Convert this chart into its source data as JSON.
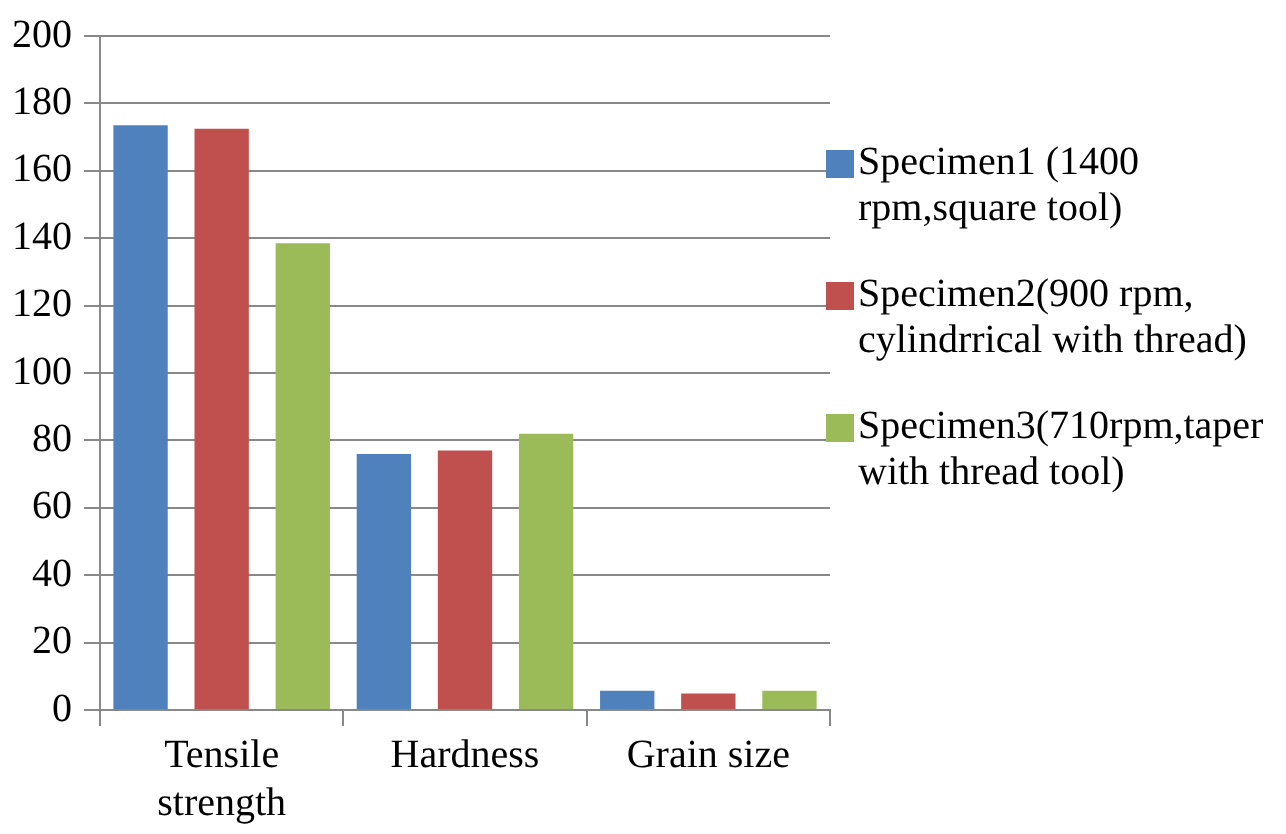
{
  "chart_data": {
    "type": "bar",
    "categories": [
      "Tensile strength",
      "Hardness",
      "Grain size"
    ],
    "series": [
      {
        "name": "Specimen1 (1400 rpm,square tool)",
        "color": "#4f81bd",
        "values": [
          173.5,
          76,
          5.7
        ]
      },
      {
        "name": "Specimen2(900 rpm, cylindrrical with thread)",
        "color": "#c0504d",
        "values": [
          172.5,
          77,
          4.9
        ]
      },
      {
        "name": "Specimen3(710rpm,taper with thread tool)",
        "color": "#9bbb59",
        "values": [
          138.5,
          82,
          5.7
        ]
      }
    ],
    "ylim": [
      0,
      200
    ],
    "yticks": [
      0,
      20,
      40,
      60,
      80,
      100,
      120,
      140,
      160,
      180,
      200
    ],
    "grid": "y",
    "legend": "right"
  }
}
